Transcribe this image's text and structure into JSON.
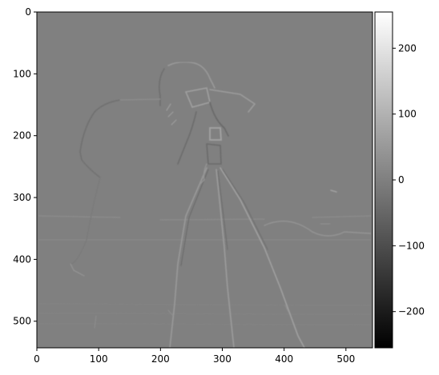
{
  "chart_data": {
    "type": "heatmap",
    "title": "",
    "xlabel": "",
    "ylabel": "",
    "colormap": "gray",
    "xlim": [
      0,
      543
    ],
    "ylim": [
      543,
      0
    ],
    "x_ticks": [
      0,
      100,
      200,
      300,
      400,
      500
    ],
    "y_ticks": [
      0,
      100,
      200,
      300,
      400,
      500
    ],
    "colorbar": {
      "vmin": -255,
      "vmax": 255,
      "ticks": [
        -200,
        -100,
        0,
        100,
        200
      ],
      "tick_labels": [
        "−200",
        "−100",
        "0",
        "100",
        "200"
      ]
    },
    "background_value": 0,
    "image_subject": "edge-filtered cameraman photograph (horizontal gradient)"
  }
}
